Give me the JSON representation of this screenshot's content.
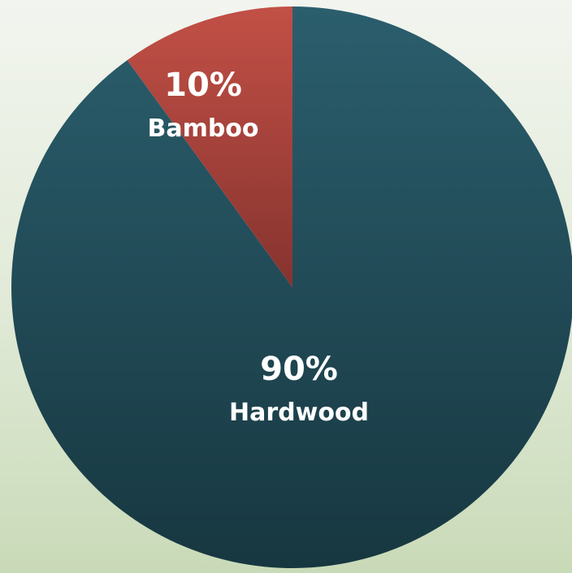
{
  "chart_data": {
    "type": "pie",
    "slices": [
      {
        "label": "Hardwood",
        "value": 90,
        "value_label": "90%",
        "color": "#1f4a56"
      },
      {
        "label": "Bamboo",
        "value": 10,
        "value_label": "10%",
        "color": "#a8423d"
      }
    ],
    "colors": {
      "hardwood_light": "#2b5e6d",
      "hardwood_dark": "#173740",
      "bamboo_light": "#c25046",
      "bamboo_dark": "#86332f",
      "background_top": "#f2f5ef",
      "background_bottom": "#c9dab8"
    },
    "start_angle_deg": 0,
    "direction": "clockwise",
    "legend": "none"
  }
}
